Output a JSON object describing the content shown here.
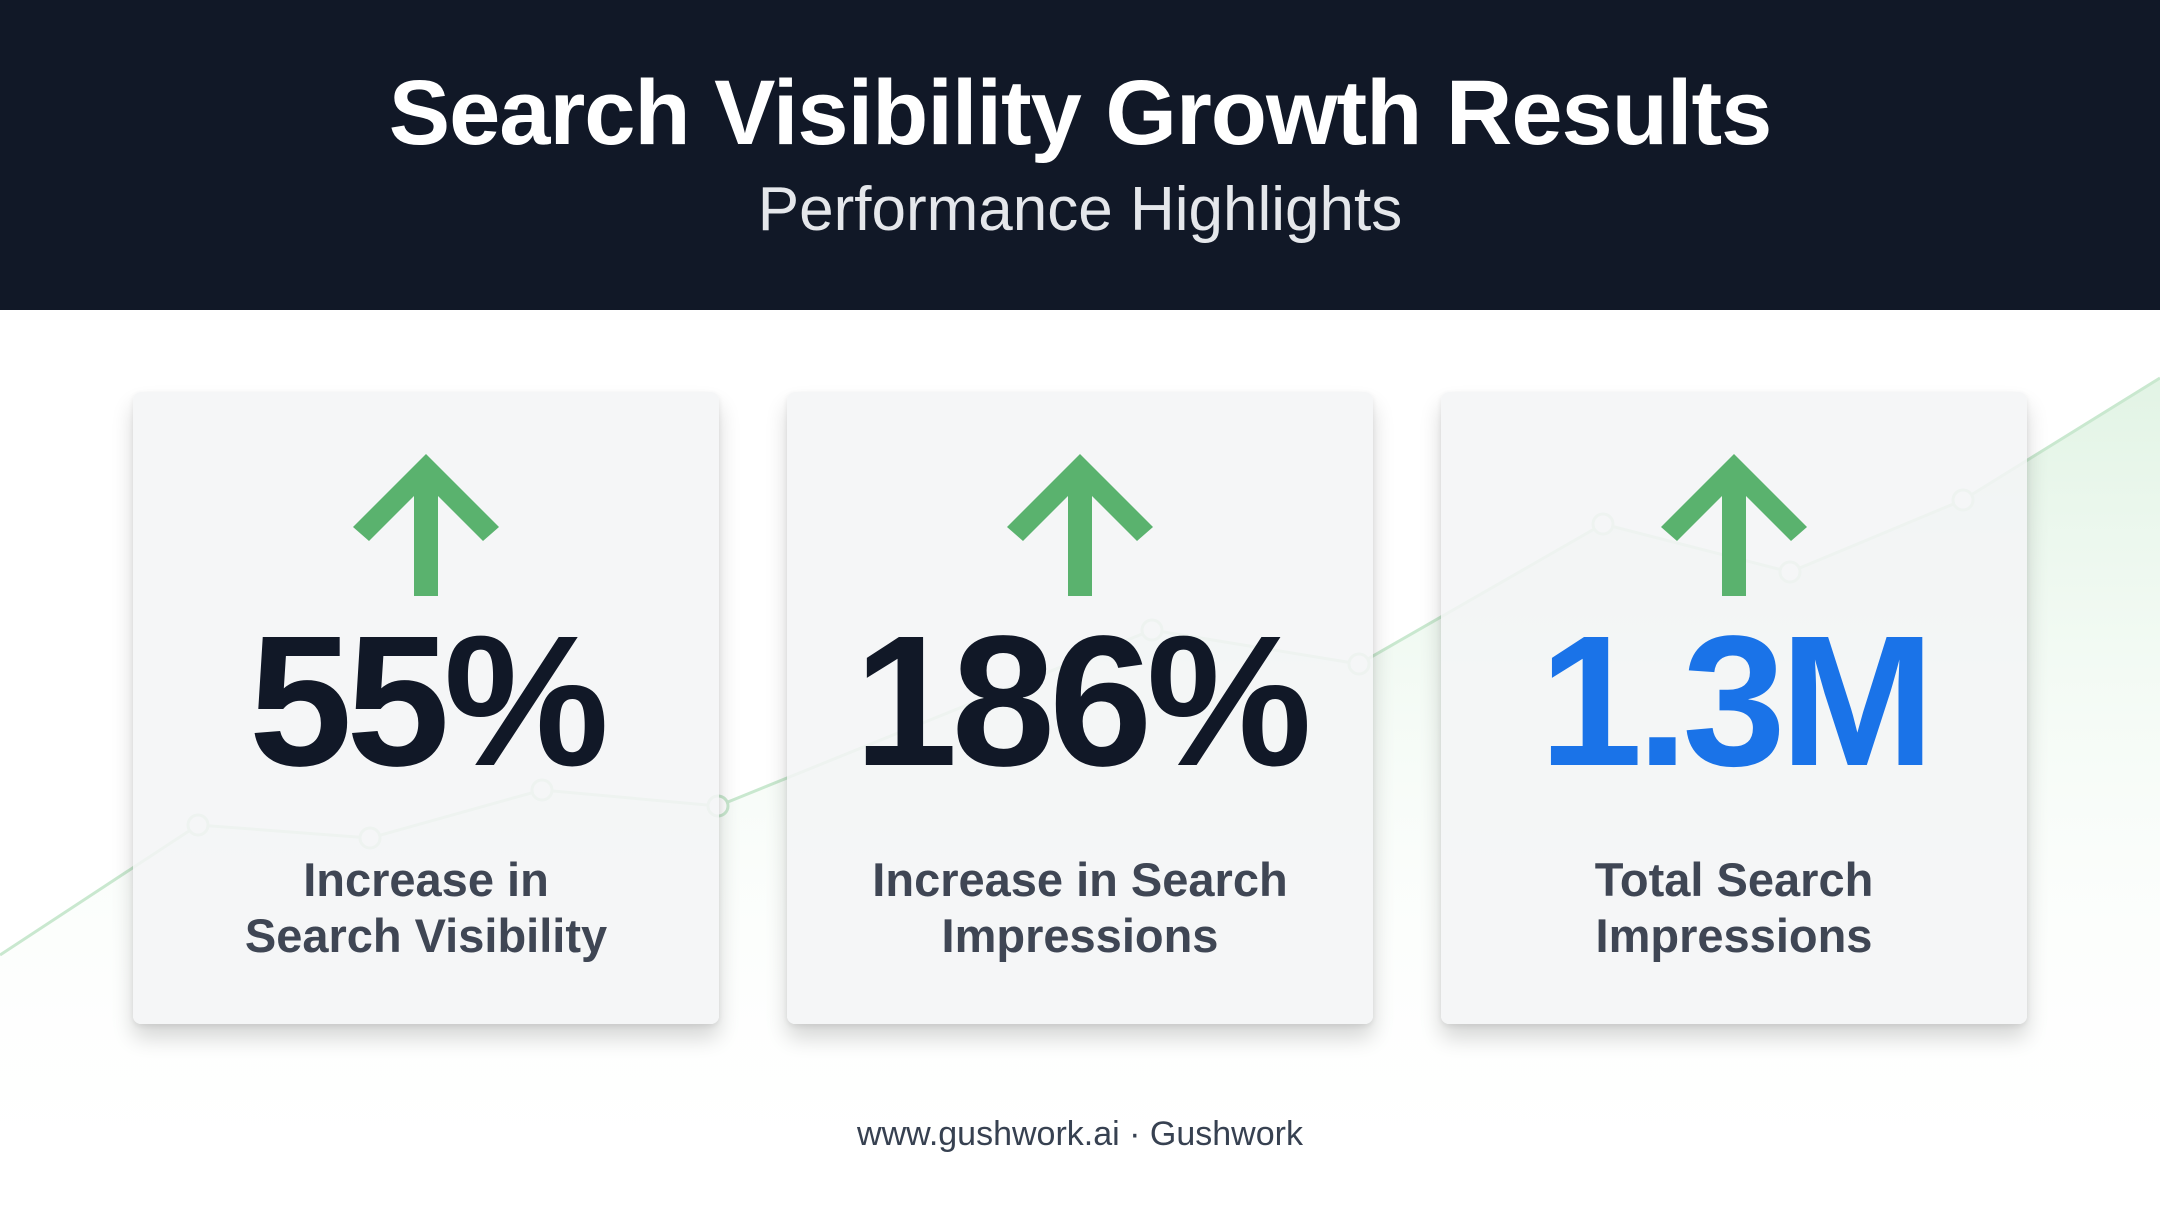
{
  "header": {
    "title": "Search Visibility Growth Results",
    "subtitle": "Performance Highlights"
  },
  "cards": [
    {
      "value": "55%",
      "label": "Increase in\nSearch Visibility",
      "icon": "arrow-up-icon"
    },
    {
      "value": "186%",
      "label": "Increase in Search\nImpressions",
      "icon": "arrow-up-icon"
    },
    {
      "value": "1.3M",
      "label": "Total Search\nImpressions",
      "icon": "arrow-up-icon"
    }
  ],
  "footer": {
    "text": "www.gushwork.ai · Gushwork"
  },
  "colors": {
    "header_bg": "#111827",
    "arrow_green": "#5ab26e",
    "highlight_blue": "#1a73e8",
    "value_dark": "#111827"
  }
}
